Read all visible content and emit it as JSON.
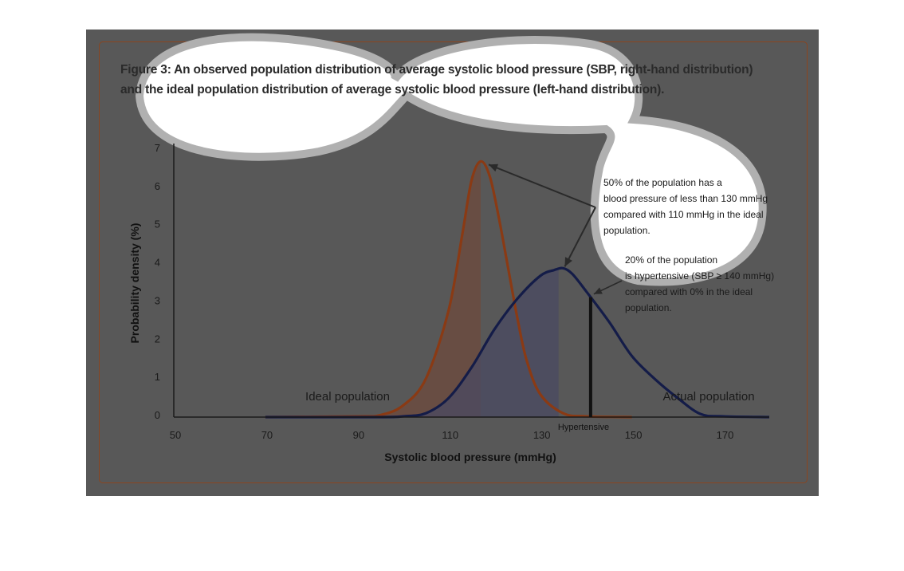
{
  "figure": {
    "title_line1": "Figure 3: An observed population distribution of average systolic blood pressure (SBP, right-hand distribution)",
    "title_line2": "and the ideal population distribution of average systolic blood pressure (left-hand distribution)."
  },
  "colors": {
    "shade": "#585858",
    "frame": "#8a4520",
    "ideal_curve": "#8a3a14",
    "ideal_fill": "#6e4a3c",
    "actual_curve": "#141c48",
    "actual_fill": "#4a4a62",
    "axis": "#1a1a1a",
    "callout": "#ffffff",
    "callout_border": "#b0b0b0"
  },
  "chart_data": {
    "type": "area",
    "xlabel": "Systolic blood pressure (mmHg)",
    "ylabel": "Probability density (%)",
    "xlim": [
      50,
      180
    ],
    "ylim": [
      0,
      7
    ],
    "x_ticks": [
      50,
      70,
      90,
      110,
      130,
      150,
      170
    ],
    "y_ticks": [
      0,
      1,
      2,
      3,
      4,
      5,
      6,
      7
    ],
    "series": [
      {
        "name": "Ideal population",
        "points": [
          [
            70,
            0
          ],
          [
            90,
            0.02
          ],
          [
            95,
            0.05
          ],
          [
            100,
            0.3
          ],
          [
            105,
            1.0
          ],
          [
            110,
            2.8
          ],
          [
            113,
            4.8
          ],
          [
            115,
            6.2
          ],
          [
            117,
            6.7
          ],
          [
            119,
            6.3
          ],
          [
            121,
            5.2
          ],
          [
            123,
            3.9
          ],
          [
            125,
            2.6
          ],
          [
            127,
            1.5
          ],
          [
            130,
            0.6
          ],
          [
            135,
            0.1
          ],
          [
            140,
            0.02
          ],
          [
            150,
            0
          ]
        ],
        "shaded_to": 117
      },
      {
        "name": "Actual population",
        "points": [
          [
            70,
            0
          ],
          [
            95,
            0
          ],
          [
            100,
            0.02
          ],
          [
            105,
            0.1
          ],
          [
            110,
            0.5
          ],
          [
            115,
            1.3
          ],
          [
            120,
            2.3
          ],
          [
            125,
            3.1
          ],
          [
            130,
            3.7
          ],
          [
            133,
            3.85
          ],
          [
            135,
            3.9
          ],
          [
            137,
            3.75
          ],
          [
            140,
            3.3
          ],
          [
            145,
            2.5
          ],
          [
            150,
            1.6
          ],
          [
            155,
            1.0
          ],
          [
            160,
            0.5
          ],
          [
            165,
            0.08
          ],
          [
            170,
            0.02
          ],
          [
            180,
            0
          ]
        ],
        "shaded_to": 134
      }
    ],
    "hypertensive_line": {
      "x": 141,
      "label": "Hypertensive"
    },
    "annotations": [
      {
        "lines": [
          "50% of the population has a",
          "blood pressure of less than 130 mmHg",
          "compared with 110 mmHg in the ideal",
          "population."
        ]
      },
      {
        "lines": [
          "20% of the population",
          "is hypertensive (SBP  ≥ 140 mmHg)",
          "compared with 0% in the ideal",
          "population."
        ]
      }
    ],
    "series_labels": {
      "ideal": "Ideal population",
      "actual": "Actual population"
    }
  }
}
